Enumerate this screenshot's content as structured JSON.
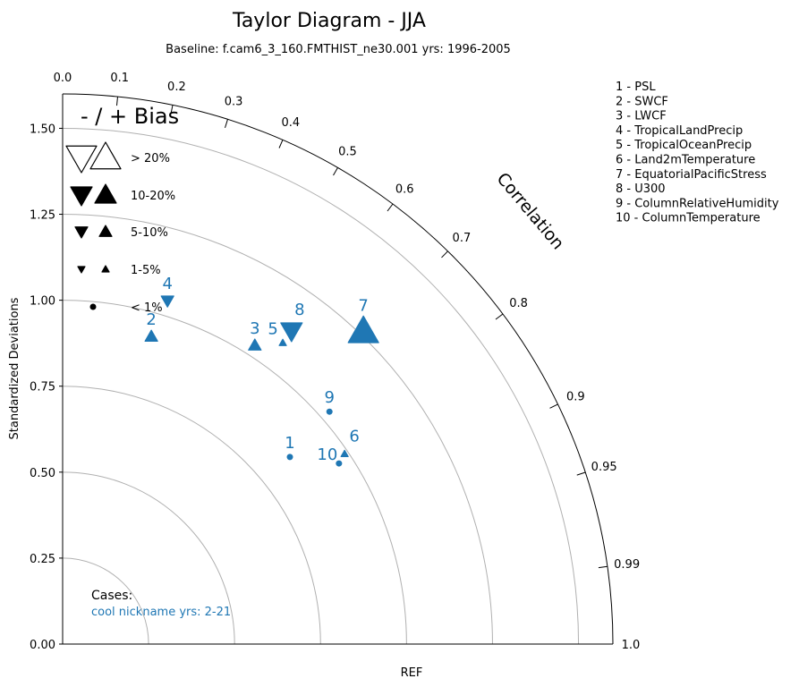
{
  "chart_data": {
    "type": "scatter",
    "subtype": "taylor-diagram",
    "title": "Taylor Diagram - JJA",
    "subtitle": "Baseline: f.cam6_3_160.FMTHIST_ne30.001  yrs: 1996-2005",
    "ylabel": "Standardized Deviations",
    "xlabel": "REF",
    "angular_label": "Correlation",
    "std_range": [
      0,
      1.6
    ],
    "std_ticks": [
      "0.00",
      "0.25",
      "0.50",
      "0.75",
      "1.00",
      "1.25",
      "1.50"
    ],
    "std_tick_values": [
      0,
      0.25,
      0.5,
      0.75,
      1.0,
      1.25,
      1.5
    ],
    "correlation_ticks": [
      0.1,
      0.2,
      0.3,
      0.4,
      0.5,
      0.6,
      0.7,
      0.8,
      0.9,
      0.95,
      0.99
    ],
    "correlation_tick_labels": [
      "0.1",
      "0.2",
      "0.3",
      "0.4",
      "0.5",
      "0.6",
      "0.7",
      "0.8",
      "0.9",
      "0.95",
      "0.99"
    ],
    "correlation_end_labels": [
      "0.0",
      "1.0"
    ],
    "series_color": "#1f77b4",
    "points": [
      {
        "id": "1",
        "std": 0.856,
        "corr": 0.772,
        "bias": "<1%",
        "sign": "none"
      },
      {
        "id": "2",
        "std": 0.931,
        "corr": 0.277,
        "bias": "5-10%",
        "sign": "+"
      },
      {
        "id": "3",
        "std": 1.033,
        "corr": 0.541,
        "bias": "5-10%",
        "sign": "+"
      },
      {
        "id": "4",
        "std": 1.044,
        "corr": 0.292,
        "bias": "5-10%",
        "sign": "-"
      },
      {
        "id": "5",
        "std": 1.085,
        "corr": 0.59,
        "bias": "1-5%",
        "sign": "+"
      },
      {
        "id": "6",
        "std": 0.989,
        "corr": 0.829,
        "bias": "1-5%",
        "sign": "+"
      },
      {
        "id": "7",
        "std": 1.262,
        "corr": 0.693,
        "bias": ">20%",
        "sign": "+"
      },
      {
        "id": "8",
        "std": 1.128,
        "corr": 0.59,
        "bias": "10-20%",
        "sign": "-"
      },
      {
        "id": "9",
        "std": 1.029,
        "corr": 0.754,
        "bias": "<1%",
        "sign": "none"
      },
      {
        "id": "10",
        "std": 0.96,
        "corr": 0.837,
        "bias": "<1%",
        "sign": "none"
      }
    ],
    "bias_legend": {
      "title": "- / + Bias",
      "entries": [
        {
          "label": "> 20%",
          "size": ">20%"
        },
        {
          "label": "10-20%",
          "size": "10-20%"
        },
        {
          "label": "5-10%",
          "size": "5-10%"
        },
        {
          "label": "1-5%",
          "size": "1-5%"
        },
        {
          "label": "< 1%",
          "size": "<1%"
        }
      ]
    },
    "variable_legend": [
      "1 - PSL",
      "2 - SWCF",
      "3 - LWCF",
      "4 - TropicalLandPrecip",
      "5 - TropicalOceanPrecip",
      "6 - Land2mTemperature",
      "7 - EquatorialPacificStress",
      "8 - U300",
      "9 - ColumnRelativeHumidity",
      "10 - ColumnTemperature"
    ],
    "cases_title": "Cases:",
    "cases": [
      "cool nickname  yrs: 2-21"
    ]
  }
}
